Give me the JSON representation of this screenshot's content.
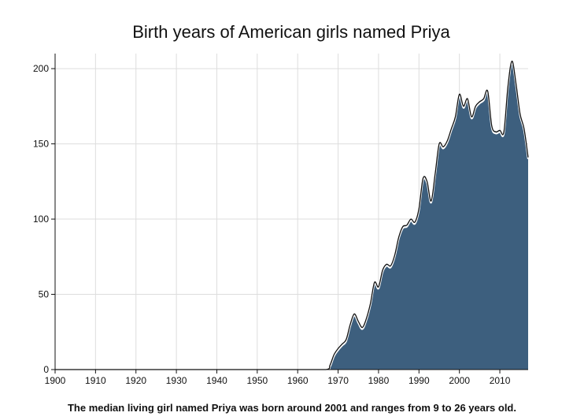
{
  "chart_data": {
    "type": "area",
    "title": "Birth years of American girls named Priya",
    "caption": "The median living girl named Priya was born around 2001 and ranges from 9 to 26 years old.",
    "xlabel": "",
    "ylabel": "",
    "xlim": [
      1900,
      2017
    ],
    "ylim": [
      0,
      210
    ],
    "x_ticks": [
      1900,
      1910,
      1920,
      1930,
      1940,
      1950,
      1960,
      1970,
      1980,
      1990,
      2000,
      2010
    ],
    "y_ticks": [
      0,
      50,
      100,
      150,
      200
    ],
    "grid": true,
    "legend": "none",
    "fill_color": "#3d5f7e",
    "line_color": "#111111",
    "x": [
      1900,
      1910,
      1920,
      1930,
      1940,
      1950,
      1960,
      1967,
      1968,
      1969,
      1970,
      1971,
      1972,
      1973,
      1974,
      1975,
      1976,
      1977,
      1978,
      1979,
      1980,
      1981,
      1982,
      1983,
      1984,
      1985,
      1986,
      1987,
      1988,
      1989,
      1990,
      1991,
      1992,
      1993,
      1994,
      1995,
      1996,
      1997,
      1998,
      1999,
      2000,
      2001,
      2002,
      2003,
      2004,
      2005,
      2006,
      2007,
      2008,
      2009,
      2010,
      2011,
      2012,
      2013,
      2014,
      2015,
      2016,
      2017
    ],
    "y": [
      0,
      0,
      0,
      0,
      0,
      0,
      0,
      0,
      3,
      10,
      14,
      17,
      20,
      30,
      37,
      32,
      28,
      34,
      44,
      58,
      55,
      66,
      70,
      69,
      76,
      88,
      95,
      96,
      100,
      98,
      107,
      127,
      125,
      112,
      130,
      150,
      148,
      152,
      160,
      168,
      183,
      175,
      180,
      168,
      175,
      178,
      180,
      185,
      162,
      158,
      159,
      158,
      188,
      205,
      190,
      170,
      160,
      141
    ]
  }
}
